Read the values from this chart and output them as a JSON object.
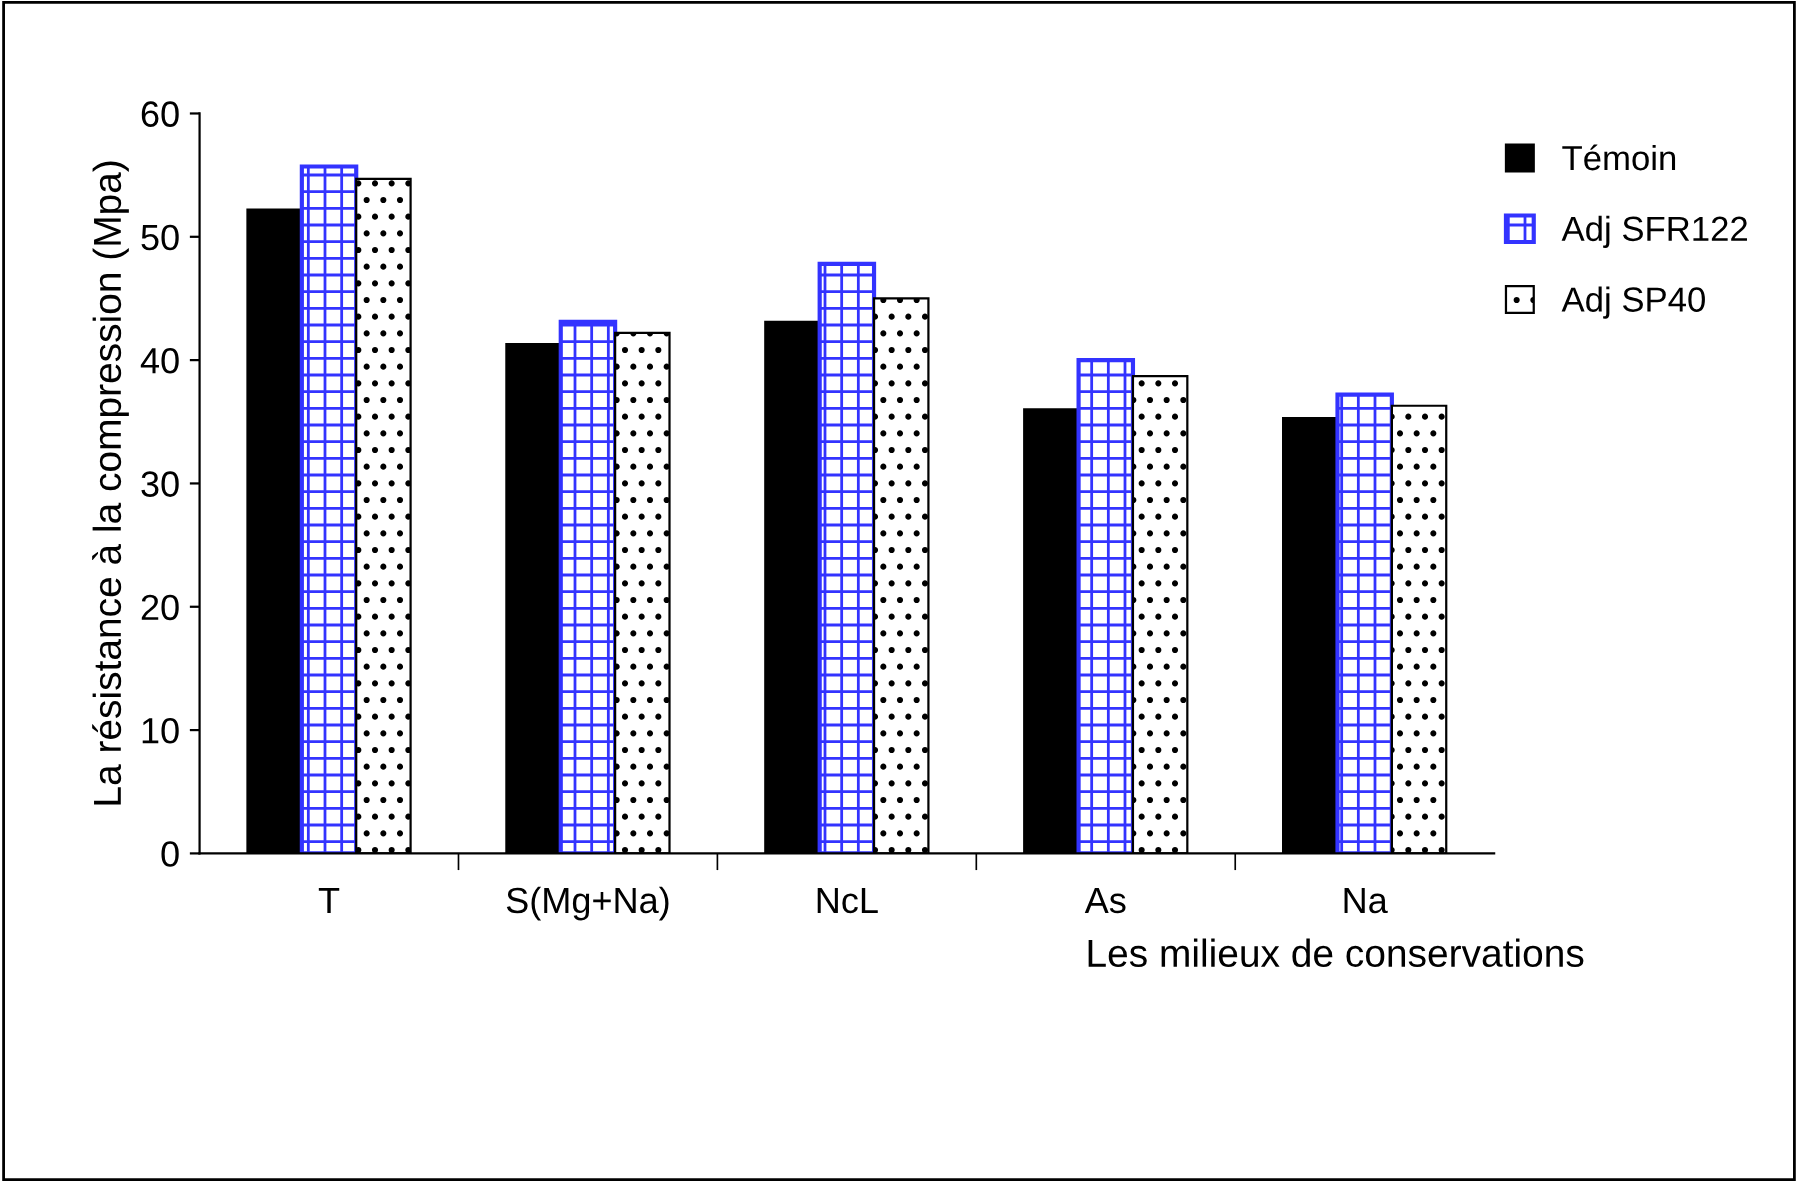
{
  "chart_data": {
    "type": "bar",
    "categories": [
      "T",
      "S(Mg+Na)",
      "NcL",
      "As",
      "Na"
    ],
    "series": [
      {
        "name": "Témoin",
        "color": "#000000",
        "values": [
          52.2,
          41.3,
          43.1,
          36.0,
          35.3
        ]
      },
      {
        "name": "Adj SFR122",
        "color": "#3333ff",
        "values": [
          55.7,
          43.1,
          47.8,
          40.0,
          37.2
        ]
      },
      {
        "name": "Adj SP40",
        "color": "#000000",
        "values": [
          54.7,
          42.2,
          45.0,
          38.7,
          36.3
        ]
      }
    ],
    "xlabel": "Les milieux de conservations",
    "ylabel": "La résistance à la compression (Mpa)",
    "ylim": [
      0,
      60
    ],
    "yticks": [
      0,
      10,
      20,
      30,
      40,
      50,
      60
    ],
    "grid": false,
    "legend": "top right"
  }
}
